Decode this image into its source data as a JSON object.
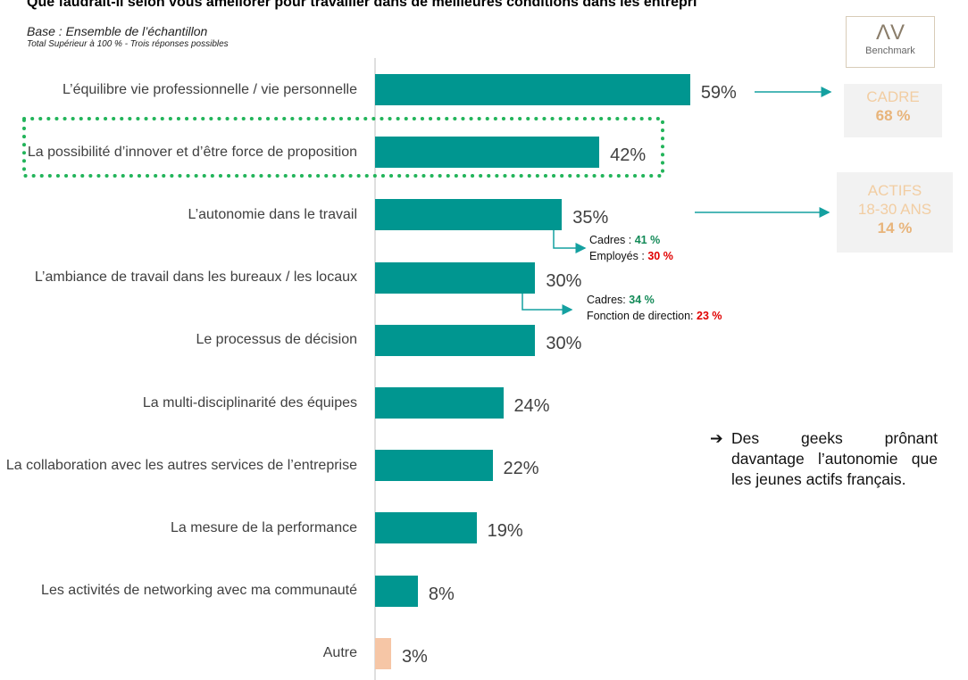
{
  "header": {
    "title": "Que faudrait-il selon vous améliorer pour travailler dans de meilleures conditions dans les entrepri",
    "base": "Base : Ensemble de l’échantillon",
    "note": "Total Supérieur à 100 % - Trois réponses possibles"
  },
  "logo": {
    "mark": "ΛV",
    "label": "Benchmark"
  },
  "chart_data": {
    "type": "bar",
    "orientation": "horizontal",
    "categories": [
      "L’équilibre vie professionnelle / vie personnelle",
      "La possibilité d’innover et d’être force de proposition",
      "L’autonomie dans le travail",
      "L’ambiance de travail dans les bureaux / les locaux",
      "Le processus de décision",
      "La multi-disciplinarité des équipes",
      "La collaboration avec les autres services de l’entreprise",
      "La mesure de la performance",
      "Les activités de networking avec ma communauté",
      "Autre"
    ],
    "values": [
      59,
      42,
      35,
      30,
      30,
      24,
      22,
      19,
      8,
      3
    ],
    "value_labels": [
      "59%",
      "42%",
      "35%",
      "30%",
      "30%",
      "24%",
      "22%",
      "19%",
      "8%",
      "3%"
    ],
    "colors": [
      "#009690",
      "#009690",
      "#009690",
      "#009690",
      "#009690",
      "#009690",
      "#009690",
      "#009690",
      "#009690",
      "#f6c6a6"
    ],
    "xlim": [
      0,
      100
    ]
  },
  "callouts": [
    {
      "title": "CADRE",
      "value": "68 %"
    },
    {
      "title": "ACTIFS",
      "subtitle": "18-30 ANS",
      "value": "14 %"
    }
  ],
  "breakdowns": [
    {
      "items": [
        {
          "label": "Cadres : ",
          "value": "41 %"
        },
        {
          "label": "Employés : ",
          "value": "30 %"
        }
      ]
    },
    {
      "items": [
        {
          "label": "Cadres: ",
          "value": "34 %"
        },
        {
          "label": "Fonction de direction: ",
          "value": "23 %"
        }
      ]
    }
  ],
  "comment": "Des geeks prônant davantage l’autonomie que les jeunes actifs français."
}
